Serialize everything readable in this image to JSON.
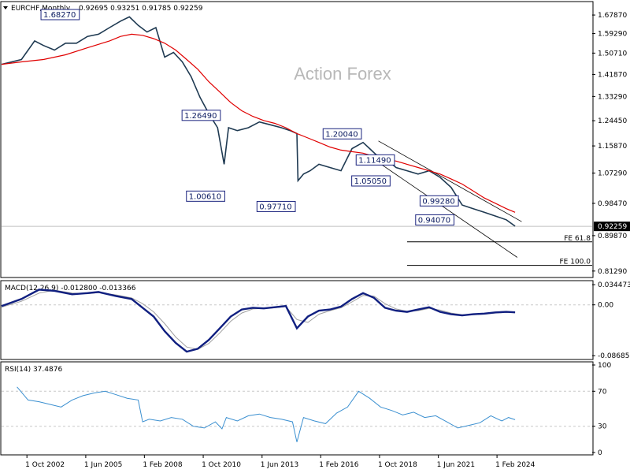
{
  "header": {
    "symbol": "EURCHF,Monthly",
    "ohlc": "0.92695 0.93251 0.91785 0.92259"
  },
  "watermark": "Action Forex",
  "colors": {
    "price": "#1f3a52",
    "ma": "#e00000",
    "macd": "#101f80",
    "signal": "#a0a0a0",
    "rsi": "#3a8fd0",
    "box": "#1a237e",
    "grid": "#c8c8c8"
  },
  "icons": {
    "collapse": "triangle-down-icon"
  },
  "chart_data": [
    {
      "type": "line",
      "panel": "price",
      "y_scale": "log",
      "ylim": [
        0.8,
        1.74
      ],
      "yticks": [
        "1.67870",
        "1.59290",
        "1.50710",
        "1.41870",
        "1.33290",
        "1.24450",
        "1.15870",
        "1.07290",
        "0.98470",
        "0.89870",
        "0.81290"
      ],
      "ytick_values": [
        1.6787,
        1.5929,
        1.5071,
        1.4187,
        1.3329,
        1.2445,
        1.1587,
        1.0729,
        0.9847,
        0.8987,
        0.8129
      ],
      "current_price": "0.92259",
      "xlim": [
        2001.6,
        2028.4
      ],
      "series": [
        {
          "x": [
            2001.6,
            2002.5,
            2003.1,
            2003.5,
            2004.0,
            2004.5,
            2005.0,
            2005.5,
            2006.0,
            2006.5,
            2007.0,
            2007.4,
            2007.8,
            2008.2,
            2008.6,
            2009.0,
            2009.4,
            2009.8,
            2010.2,
            2010.6,
            2011.0,
            2011.4,
            2011.7,
            2011.9,
            2012.3,
            2012.8,
            2013.3,
            2013.8,
            2014.3,
            2014.7,
            2015.0,
            2015.05,
            2015.3,
            2015.6,
            2016.0,
            2016.5,
            2017.0,
            2017.5,
            2018.0,
            2018.3,
            2018.6,
            2019.0,
            2019.5,
            2020.0,
            2020.5,
            2021.0,
            2021.5,
            2022.0,
            2022.5,
            2023.0,
            2023.5,
            2024.0,
            2024.5,
            2024.9
          ],
          "y": [
            1.46,
            1.48,
            1.56,
            1.54,
            1.52,
            1.55,
            1.55,
            1.58,
            1.59,
            1.62,
            1.65,
            1.67,
            1.63,
            1.6,
            1.62,
            1.49,
            1.51,
            1.47,
            1.41,
            1.33,
            1.27,
            1.22,
            1.1,
            1.22,
            1.21,
            1.22,
            1.24,
            1.23,
            1.22,
            1.21,
            1.2,
            1.05,
            1.07,
            1.08,
            1.1,
            1.09,
            1.08,
            1.15,
            1.17,
            1.15,
            1.13,
            1.12,
            1.09,
            1.08,
            1.07,
            1.08,
            1.06,
            1.03,
            0.98,
            0.97,
            0.96,
            0.95,
            0.94,
            0.923
          ]
        },
        {
          "x": [
            2001.6,
            2002.5,
            2003.5,
            2004.5,
            2005.5,
            2006.5,
            2007.0,
            2007.5,
            2008.0,
            2008.5,
            2009.0,
            2009.5,
            2010.0,
            2010.5,
            2011.0,
            2011.5,
            2012.0,
            2012.5,
            2013.0,
            2013.5,
            2014.0,
            2014.5,
            2015.0,
            2015.5,
            2016.0,
            2016.5,
            2017.0,
            2017.5,
            2018.0,
            2018.5,
            2019.0,
            2019.5,
            2020.0,
            2020.5,
            2021.0,
            2021.5,
            2022.0,
            2022.5,
            2023.0,
            2023.5,
            2024.0,
            2024.5,
            2024.9
          ],
          "y": [
            1.46,
            1.47,
            1.48,
            1.5,
            1.53,
            1.56,
            1.58,
            1.59,
            1.585,
            1.57,
            1.55,
            1.52,
            1.48,
            1.44,
            1.39,
            1.35,
            1.31,
            1.28,
            1.26,
            1.245,
            1.235,
            1.22,
            1.2,
            1.185,
            1.17,
            1.155,
            1.145,
            1.14,
            1.135,
            1.125,
            1.115,
            1.11,
            1.1,
            1.09,
            1.08,
            1.07,
            1.055,
            1.04,
            1.02,
            1.0,
            0.985,
            0.97,
            0.96
          ]
        }
      ],
      "annotations": [
        {
          "label": "1.68270",
          "x": 2005.2,
          "y": 1.6827
        },
        {
          "label": "1.26490",
          "x": 2011.6,
          "y": 1.2649
        },
        {
          "label": "1.00610",
          "x": 2011.8,
          "y": 1.0061
        },
        {
          "label": "0.97710",
          "x": 2015.0,
          "y": 0.9771
        },
        {
          "label": "1.20040",
          "x": 2018.0,
          "y": 1.2004
        },
        {
          "label": "1.11490",
          "x": 2019.5,
          "y": 1.1149
        },
        {
          "label": "1.05050",
          "x": 2019.3,
          "y": 1.0505
        },
        {
          "label": "0.99280",
          "x": 2022.4,
          "y": 0.9928
        },
        {
          "label": "0.94070",
          "x": 2022.2,
          "y": 0.9407
        }
      ],
      "fe_levels": [
        {
          "label": "FE 61.8",
          "y": 0.883
        },
        {
          "label": "FE 100.0",
          "y": 0.826
        }
      ]
    },
    {
      "type": "line",
      "panel": "macd",
      "label": "MACD(12,26,9) -0.012800 -0.013366",
      "ylim": [
        -0.092,
        0.04
      ],
      "yticks": [
        "0.034473",
        "0.00",
        "-0.086855"
      ],
      "ytick_values": [
        0.034473,
        0.0,
        -0.086855
      ],
      "zero_label": "0.00",
      "series": [
        {
          "x": [
            2001.6,
            2002.5,
            2003.3,
            2004.0,
            2004.8,
            2005.5,
            2006.0,
            2006.8,
            2007.5,
            2008.0,
            2008.5,
            2009.0,
            2009.5,
            2010.0,
            2010.5,
            2011.0,
            2011.5,
            2012.0,
            2012.5,
            2013.0,
            2013.5,
            2014.0,
            2014.5,
            2015.0,
            2015.5,
            2016.0,
            2016.5,
            2017.0,
            2017.5,
            2018.0,
            2018.5,
            2019.0,
            2019.5,
            2020.0,
            2020.5,
            2021.0,
            2021.5,
            2022.0,
            2022.5,
            2023.0,
            2023.5,
            2024.0,
            2024.5,
            2024.9
          ],
          "y": [
            -0.002,
            0.01,
            0.026,
            0.024,
            0.018,
            0.02,
            0.022,
            0.015,
            0.01,
            -0.005,
            -0.02,
            -0.045,
            -0.065,
            -0.08,
            -0.075,
            -0.06,
            -0.04,
            -0.02,
            -0.008,
            -0.005,
            -0.006,
            -0.004,
            -0.002,
            -0.04,
            -0.02,
            -0.01,
            -0.008,
            -0.003,
            0.01,
            0.02,
            0.012,
            -0.005,
            -0.01,
            -0.012,
            -0.008,
            -0.004,
            -0.012,
            -0.016,
            -0.018,
            -0.016,
            -0.015,
            -0.013,
            -0.012,
            -0.0128
          ]
        },
        {
          "x": [
            2001.6,
            2002.5,
            2003.3,
            2004.0,
            2004.8,
            2005.5,
            2006.0,
            2006.8,
            2007.5,
            2008.0,
            2008.5,
            2009.0,
            2009.5,
            2010.0,
            2010.5,
            2011.0,
            2011.5,
            2012.0,
            2012.5,
            2013.0,
            2013.5,
            2014.0,
            2014.5,
            2015.0,
            2015.5,
            2016.0,
            2016.5,
            2017.0,
            2017.5,
            2018.0,
            2018.5,
            2019.0,
            2019.5,
            2020.0,
            2020.5,
            2021.0,
            2021.5,
            2022.0,
            2022.5,
            2023.0,
            2023.5,
            2024.0,
            2024.5,
            2024.9
          ],
          "y": [
            -0.004,
            0.006,
            0.02,
            0.025,
            0.02,
            0.019,
            0.021,
            0.017,
            0.012,
            0.002,
            -0.012,
            -0.032,
            -0.055,
            -0.072,
            -0.076,
            -0.066,
            -0.048,
            -0.028,
            -0.014,
            -0.007,
            -0.006,
            -0.005,
            -0.003,
            -0.025,
            -0.03,
            -0.016,
            -0.01,
            -0.005,
            0.005,
            0.016,
            0.015,
            0.002,
            -0.007,
            -0.011,
            -0.01,
            -0.006,
            -0.009,
            -0.014,
            -0.017,
            -0.017,
            -0.016,
            -0.014,
            -0.013,
            -0.0134
          ]
        }
      ]
    },
    {
      "type": "line",
      "panel": "rsi",
      "label": "RSI(14) 37.4876",
      "ylim": [
        0,
        100
      ],
      "yticks": [
        "100",
        "70",
        "30",
        "0"
      ],
      "ytick_values": [
        100,
        70,
        30,
        0
      ],
      "levels": [
        70,
        30
      ],
      "series": [
        {
          "x": [
            2002.3,
            2002.8,
            2003.3,
            2003.8,
            2004.3,
            2004.8,
            2005.3,
            2005.8,
            2006.3,
            2006.8,
            2007.3,
            2007.8,
            2008.0,
            2008.3,
            2008.8,
            2009.3,
            2009.8,
            2010.3,
            2010.8,
            2011.3,
            2011.6,
            2011.8,
            2012.3,
            2012.8,
            2013.3,
            2013.8,
            2014.3,
            2014.8,
            2015.0,
            2015.3,
            2015.8,
            2016.3,
            2016.8,
            2017.3,
            2017.8,
            2018.3,
            2018.8,
            2019.3,
            2019.8,
            2020.3,
            2020.8,
            2021.3,
            2021.8,
            2022.3,
            2022.8,
            2023.3,
            2023.8,
            2024.3,
            2024.6,
            2024.9
          ],
          "y": [
            75,
            60,
            58,
            55,
            52,
            60,
            65,
            68,
            70,
            66,
            62,
            60,
            35,
            38,
            36,
            40,
            38,
            30,
            28,
            35,
            27,
            40,
            36,
            42,
            44,
            40,
            38,
            35,
            12,
            40,
            36,
            33,
            45,
            52,
            70,
            62,
            52,
            48,
            43,
            46,
            40,
            42,
            35,
            28,
            31,
            34,
            42,
            36,
            40,
            37.49
          ]
        }
      ]
    }
  ],
  "x_axis": {
    "ticks": [
      {
        "label": "1 Oct 2002",
        "x": 2002.75
      },
      {
        "label": "1 Jun 2005",
        "x": 2005.42
      },
      {
        "label": "1 Feb 2008",
        "x": 2008.08
      },
      {
        "label": "1 Oct 2010",
        "x": 2010.75
      },
      {
        "label": "1 Jun 2013",
        "x": 2013.42
      },
      {
        "label": "1 Feb 2016",
        "x": 2016.08
      },
      {
        "label": "1 Oct 2018",
        "x": 2018.75
      },
      {
        "label": "1 Jun 2021",
        "x": 2021.42
      },
      {
        "label": "1 Feb 2024",
        "x": 2024.08
      }
    ]
  }
}
